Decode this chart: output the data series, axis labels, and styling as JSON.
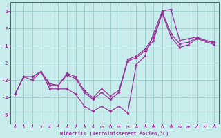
{
  "xlabel": "Windchill (Refroidissement éolien,°C)",
  "bg_color": "#c8ecec",
  "grid_color": "#a0d0d0",
  "line_color": "#993399",
  "xlim": [
    -0.5,
    23.5
  ],
  "ylim": [
    -5.5,
    1.5
  ],
  "yticks": [
    1,
    0,
    -1,
    -2,
    -3,
    -4,
    -5
  ],
  "xticks": [
    0,
    1,
    2,
    3,
    4,
    5,
    6,
    7,
    8,
    9,
    10,
    11,
    12,
    13,
    14,
    15,
    16,
    17,
    18,
    19,
    20,
    21,
    22,
    23
  ],
  "series1_x": [
    0,
    1,
    2,
    3,
    4,
    5,
    6,
    7,
    8,
    9,
    10,
    11,
    12,
    13,
    14,
    15,
    16,
    17,
    18,
    19,
    20,
    21,
    22,
    23
  ],
  "series1_y": [
    -3.8,
    -2.8,
    -3.0,
    -2.5,
    -3.5,
    -3.5,
    -3.5,
    -3.8,
    -4.5,
    -4.8,
    -4.5,
    -4.8,
    -4.5,
    -4.9,
    -2.1,
    -1.6,
    -0.3,
    1.0,
    1.1,
    -0.7,
    -0.6,
    -0.5,
    -0.7,
    -0.8
  ],
  "series2_x": [
    0,
    1,
    2,
    3,
    4,
    5,
    6,
    7,
    8,
    9,
    10,
    11,
    12,
    13,
    14,
    15,
    16,
    17,
    18,
    19,
    20,
    21,
    22,
    23
  ],
  "series2_y": [
    -3.8,
    -2.8,
    -2.8,
    -2.5,
    -3.3,
    -3.3,
    -2.7,
    -2.9,
    -3.7,
    -4.1,
    -3.7,
    -4.1,
    -3.7,
    -1.9,
    -1.7,
    -1.3,
    -0.7,
    0.95,
    -0.3,
    -0.9,
    -0.8,
    -0.55,
    -0.7,
    -0.85
  ],
  "series3_x": [
    0,
    1,
    2,
    3,
    4,
    5,
    6,
    7,
    8,
    9,
    10,
    11,
    12,
    13,
    14,
    15,
    16,
    17,
    18,
    19,
    20,
    21,
    22,
    23
  ],
  "series3_y": [
    -3.8,
    -2.8,
    -2.8,
    -2.5,
    -3.2,
    -3.3,
    -2.6,
    -2.8,
    -3.6,
    -4.0,
    -3.5,
    -3.9,
    -3.6,
    -1.8,
    -1.6,
    -1.2,
    -0.5,
    0.85,
    -0.5,
    -1.1,
    -0.95,
    -0.6,
    -0.75,
    -0.95
  ]
}
